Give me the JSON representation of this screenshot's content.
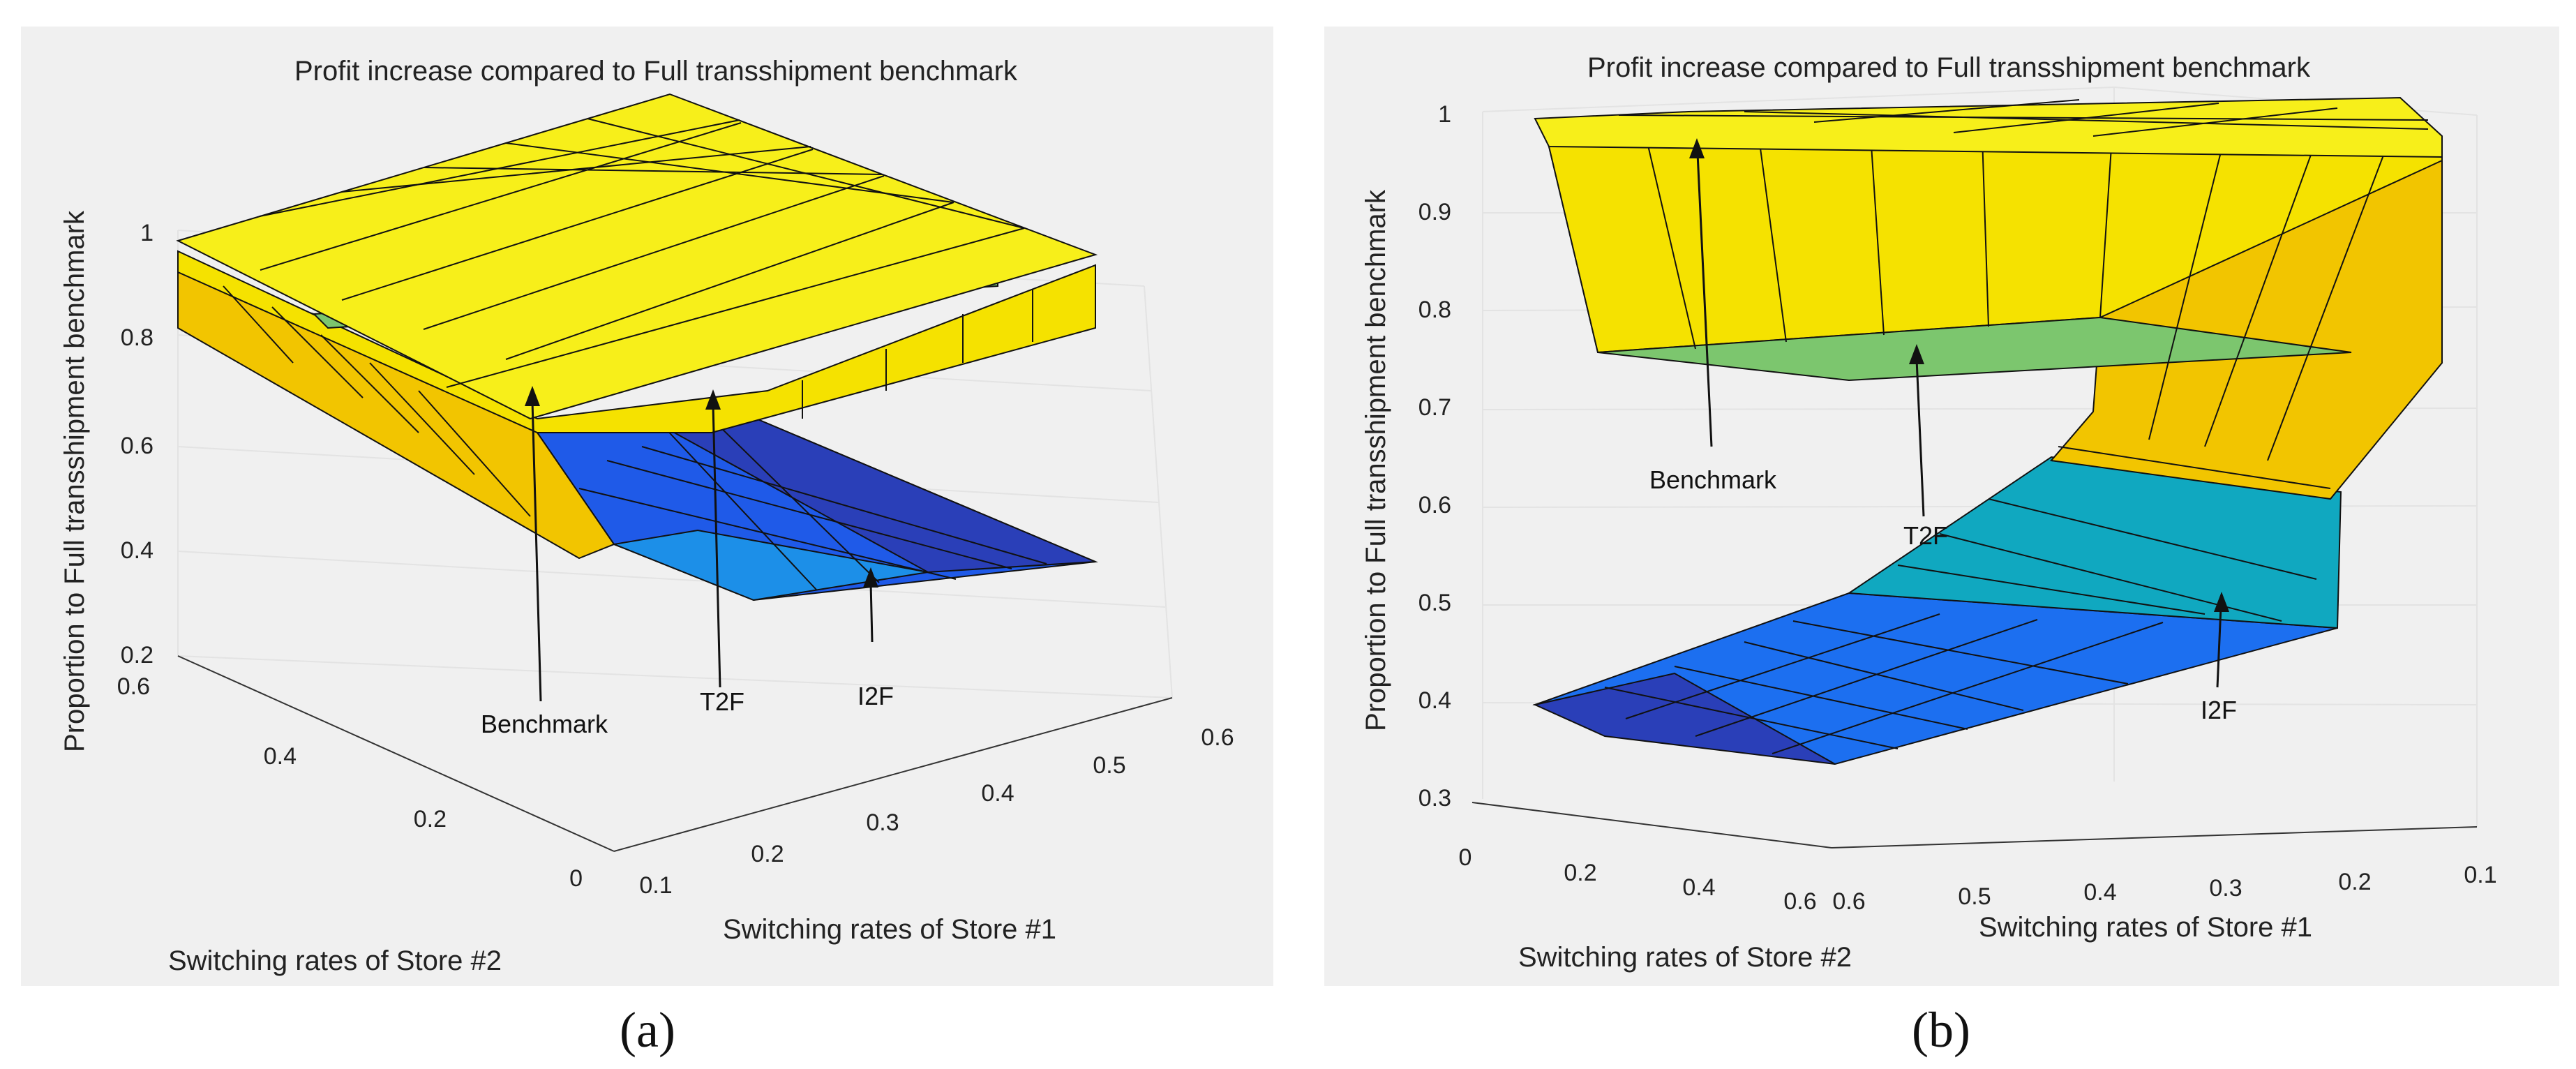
{
  "chart_data": [
    {
      "panel": "a",
      "type": "surface3d",
      "title": "Profit increase compared to Full transshipment benchmark",
      "zlabel": "Proportion to Full transshipment benchmark",
      "xlabel": "Switching rates of Store #1",
      "ylabel": "Switching rates of Store #2",
      "x_ticks": [
        "0.1",
        "0.2",
        "0.3",
        "0.4",
        "0.5",
        "0.6"
      ],
      "y_ticks": [
        "0",
        "0.2",
        "0.4",
        "0.6"
      ],
      "z_ticks": [
        "0.2",
        "0.4",
        "0.6",
        "0.8",
        "1"
      ],
      "zlim": [
        0.2,
        1
      ],
      "annotations": [
        "Benchmark",
        "T2F",
        "I2F"
      ],
      "series": [
        {
          "name": "Benchmark",
          "value": 1.0,
          "color": "#f7ef1a"
        },
        {
          "name": "T2F",
          "min": 0.78,
          "max": 0.95,
          "color": "#f5d800"
        },
        {
          "name": "I2F",
          "min": 0.3,
          "max": 0.58,
          "color": "#1a50e8"
        }
      ]
    },
    {
      "panel": "b",
      "type": "surface3d",
      "title": "Profit increase compared to Full transshipment benchmark",
      "zlabel": "Proportion to Full transshipment benchmark",
      "xlabel": "Switching rates of Store #1",
      "ylabel": "Switching rates of Store #2",
      "x_ticks": [
        "0.6",
        "0.5",
        "0.4",
        "0.3",
        "0.2",
        "0.1"
      ],
      "y_ticks": [
        "0",
        "0.2",
        "0.4",
        "0.6"
      ],
      "z_ticks": [
        "0.3",
        "0.4",
        "0.5",
        "0.6",
        "0.7",
        "0.8",
        "0.9",
        "1"
      ],
      "zlim": [
        0.3,
        1
      ],
      "annotations": [
        "Benchmark",
        "T2F",
        "I2F"
      ],
      "series": [
        {
          "name": "Benchmark",
          "value": 1.0,
          "color": "#f7ef1a"
        },
        {
          "name": "T2F",
          "min": 0.75,
          "max": 0.97,
          "color": "#f5d800"
        },
        {
          "name": "I2F",
          "min": 0.35,
          "max": 0.96,
          "color": "#1a50e8"
        }
      ]
    }
  ],
  "captions": [
    "(a)",
    "(b)"
  ]
}
